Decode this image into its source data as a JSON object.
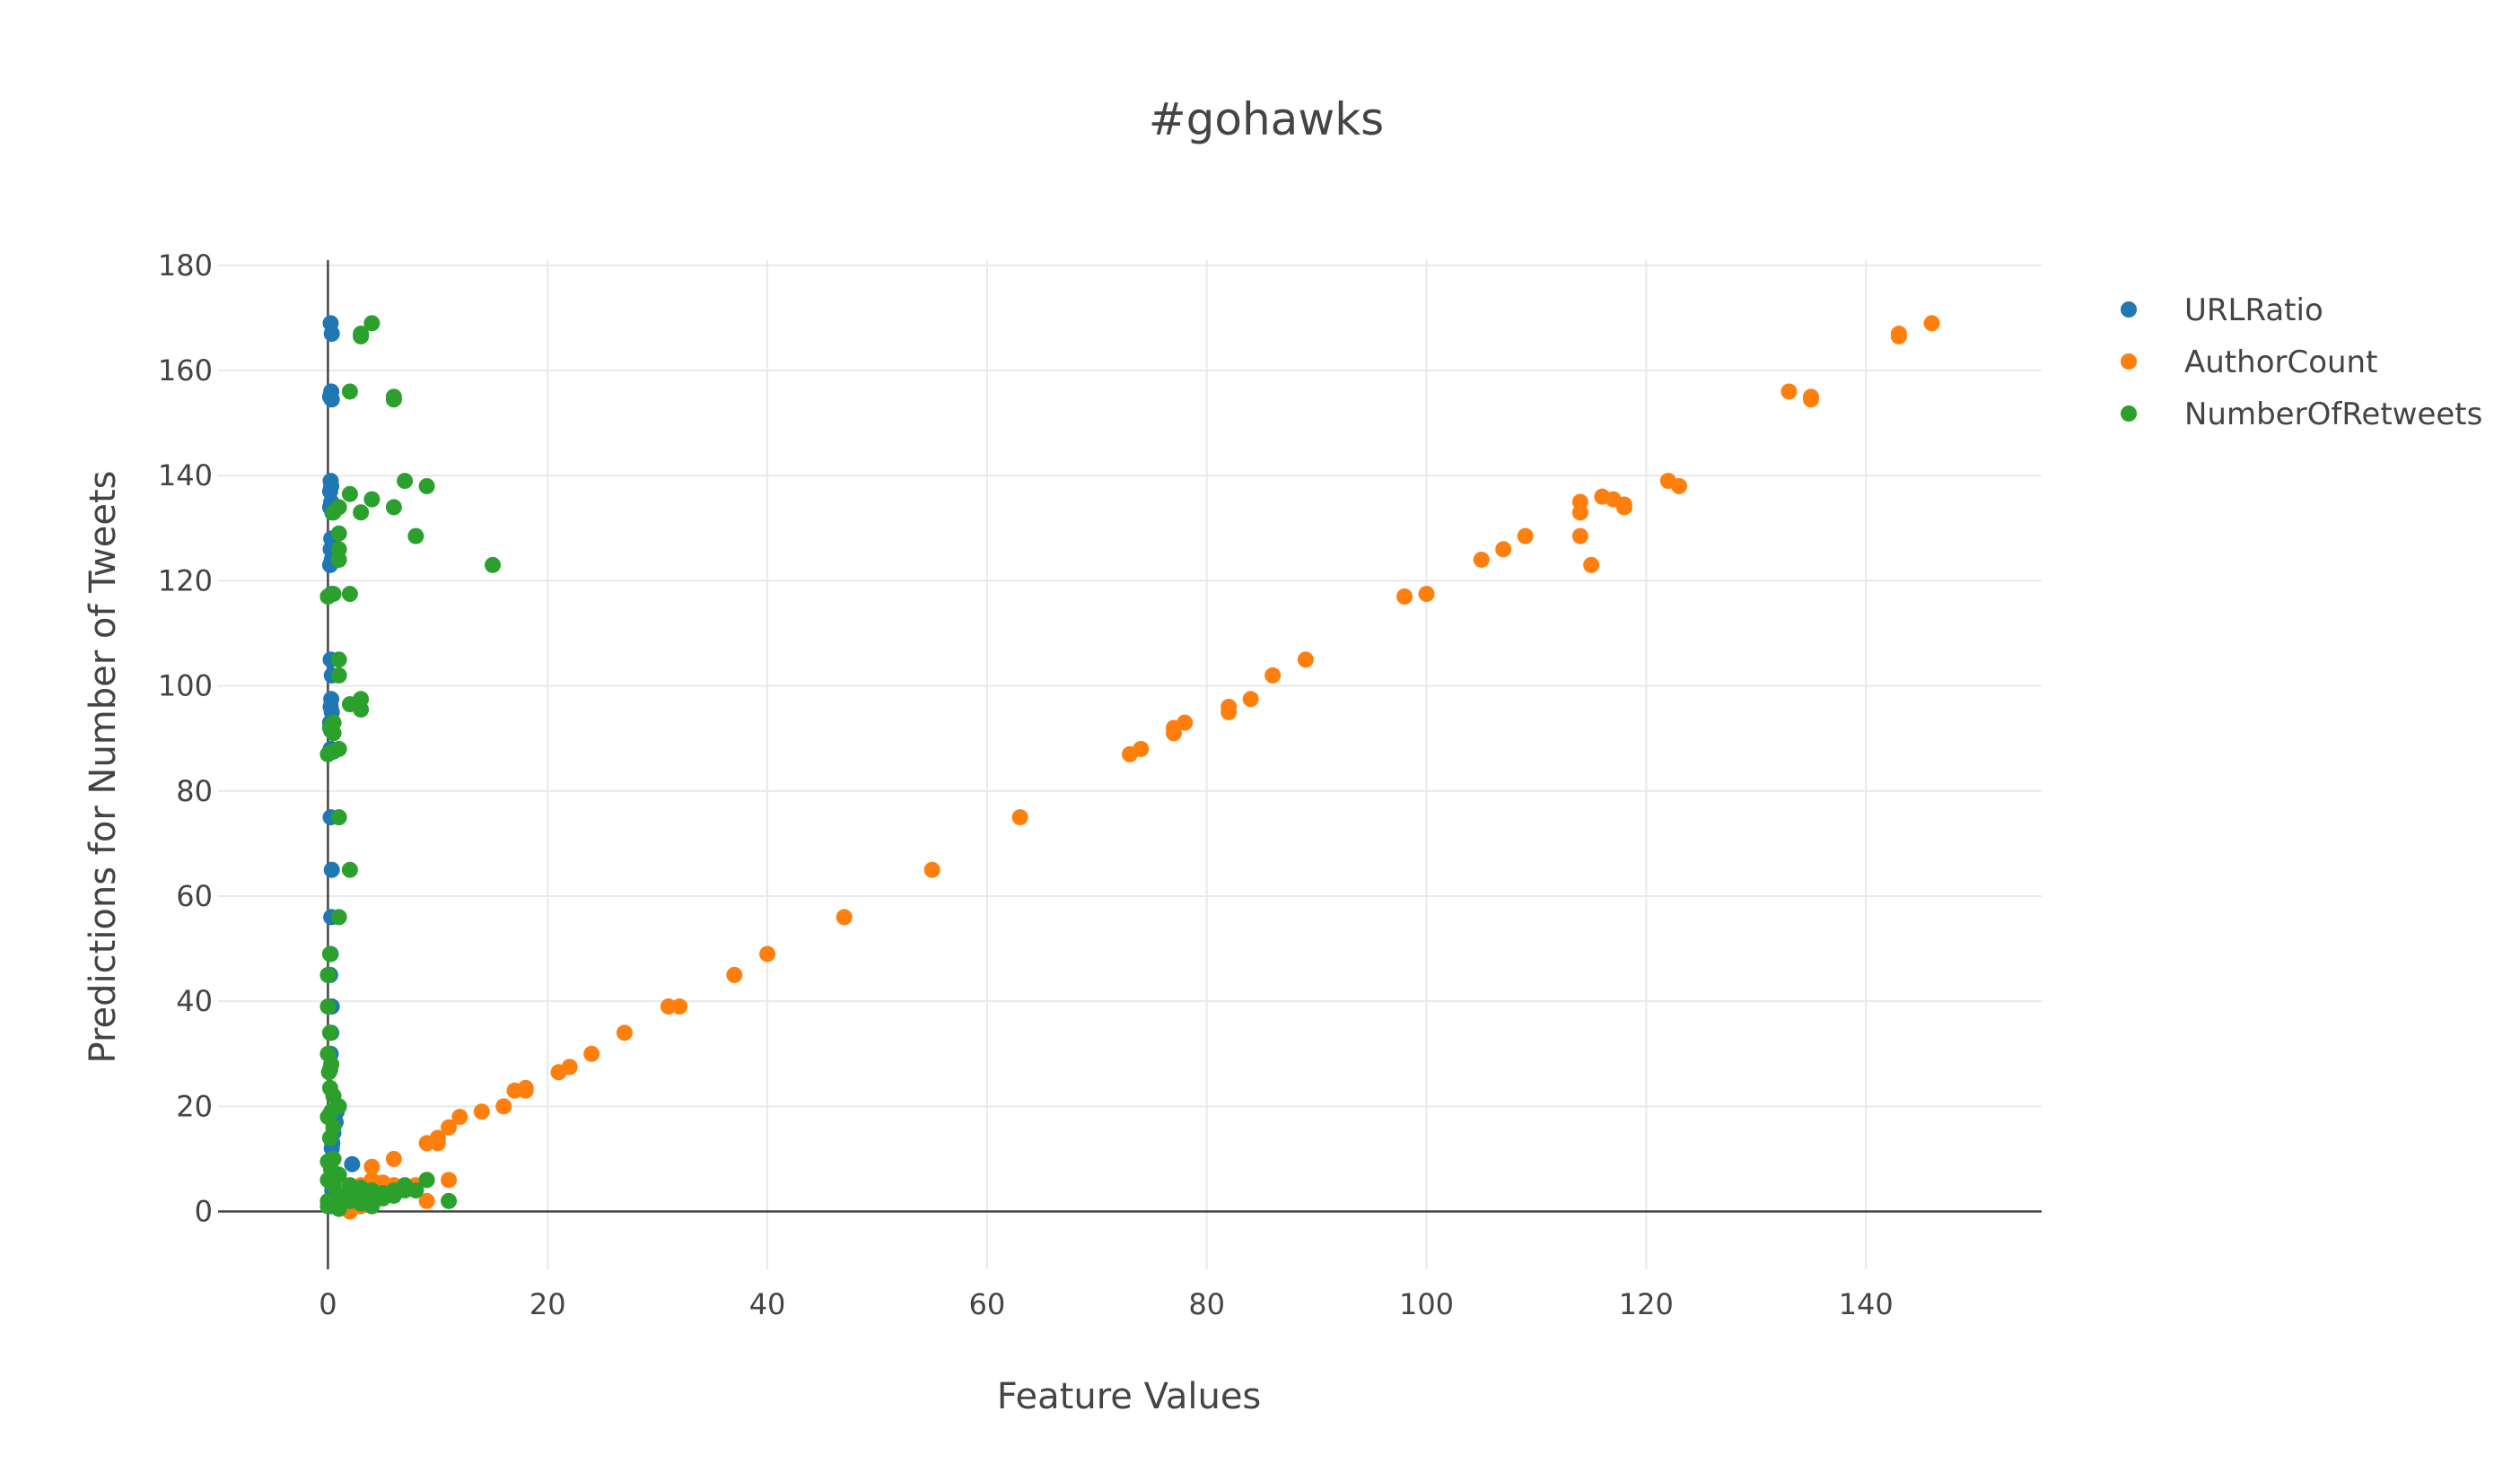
{
  "colors": {
    "URLRatio": "#1f77b4",
    "AuthorCount": "#ff7f0e",
    "NumberOfRetweets": "#2ca02c",
    "grid": "#e9e9e9",
    "zeroline": "#444444",
    "text": "#444444"
  },
  "chart_data": {
    "type": "scatter",
    "title": "#gohawks",
    "xlabel": "Feature Values",
    "ylabel": "Predictions for Number of Tweets",
    "xlim": [
      -10,
      156
    ],
    "ylim": [
      -11,
      181
    ],
    "xticks": [
      0,
      20,
      40,
      60,
      80,
      100,
      120,
      140
    ],
    "yticks": [
      0,
      20,
      40,
      60,
      80,
      100,
      120,
      140,
      160,
      180
    ],
    "grid": true,
    "legend_position": "top-right",
    "series": [
      {
        "name": "URLRatio",
        "points": [
          [
            0.25,
            169
          ],
          [
            0.35,
            167
          ],
          [
            0.3,
            156
          ],
          [
            0.2,
            155
          ],
          [
            0.35,
            154.5
          ],
          [
            0.25,
            139
          ],
          [
            0.3,
            138
          ],
          [
            0.2,
            137
          ],
          [
            0.3,
            135
          ],
          [
            0.2,
            134
          ],
          [
            0.4,
            133
          ],
          [
            0.3,
            128
          ],
          [
            0.25,
            126
          ],
          [
            0.35,
            124
          ],
          [
            0.2,
            123
          ],
          [
            0.3,
            117.5
          ],
          [
            0.25,
            105
          ],
          [
            0.35,
            102
          ],
          [
            0.3,
            97.5
          ],
          [
            0.25,
            96
          ],
          [
            0.35,
            95
          ],
          [
            0.2,
            93
          ],
          [
            0.3,
            91.5
          ],
          [
            0.25,
            88
          ],
          [
            0.25,
            75
          ],
          [
            0.35,
            65
          ],
          [
            0.3,
            56
          ],
          [
            0.25,
            49
          ],
          [
            0.2,
            45
          ],
          [
            0.35,
            39
          ],
          [
            0.3,
            34
          ],
          [
            0.25,
            30
          ],
          [
            0.2,
            27
          ],
          [
            0.9,
            20
          ],
          [
            0.8,
            19
          ],
          [
            0.7,
            17
          ],
          [
            0.5,
            15
          ],
          [
            0.4,
            13
          ],
          [
            0.35,
            12
          ],
          [
            2.2,
            9
          ],
          [
            0.3,
            8
          ],
          [
            0.5,
            6
          ],
          [
            0.4,
            4
          ],
          [
            0.3,
            2
          ],
          [
            0.2,
            1
          ]
        ]
      },
      {
        "name": "AuthorCount",
        "points": [
          [
            146,
            169
          ],
          [
            143,
            167
          ],
          [
            143,
            166.5
          ],
          [
            133,
            156
          ],
          [
            135,
            155
          ],
          [
            135,
            154.5
          ],
          [
            122,
            139
          ],
          [
            123,
            138
          ],
          [
            116,
            136
          ],
          [
            117,
            135.5
          ],
          [
            114,
            135
          ],
          [
            118,
            134.5
          ],
          [
            118,
            134
          ],
          [
            114,
            133
          ],
          [
            109,
            128.5
          ],
          [
            114,
            128.5
          ],
          [
            107,
            126
          ],
          [
            105,
            124
          ],
          [
            115,
            123
          ],
          [
            100,
            117.5
          ],
          [
            98,
            117
          ],
          [
            89,
            105
          ],
          [
            86,
            102
          ],
          [
            84,
            97.5
          ],
          [
            82,
            96
          ],
          [
            82,
            95
          ],
          [
            78,
            93
          ],
          [
            77,
            92
          ],
          [
            77,
            91
          ],
          [
            74,
            88
          ],
          [
            73,
            87
          ],
          [
            63,
            75
          ],
          [
            55,
            65
          ],
          [
            47,
            56
          ],
          [
            40,
            49
          ],
          [
            37,
            45
          ],
          [
            32,
            39
          ],
          [
            31,
            39
          ],
          [
            27,
            34
          ],
          [
            24,
            30
          ],
          [
            22,
            27.5
          ],
          [
            21,
            26.5
          ],
          [
            18,
            23.5
          ],
          [
            17,
            23
          ],
          [
            18,
            23
          ],
          [
            16,
            20
          ],
          [
            14,
            19
          ],
          [
            12,
            18
          ],
          [
            11,
            16
          ],
          [
            10,
            14
          ],
          [
            10,
            13
          ],
          [
            9,
            13
          ],
          [
            6,
            10
          ],
          [
            4,
            8.5
          ],
          [
            11,
            6
          ],
          [
            9,
            6
          ],
          [
            8,
            5
          ],
          [
            6,
            5
          ],
          [
            5,
            5.5
          ],
          [
            4,
            6
          ],
          [
            3,
            5
          ],
          [
            2,
            4
          ],
          [
            1,
            6
          ],
          [
            1,
            4
          ],
          [
            1,
            2
          ],
          [
            2,
            1.5
          ],
          [
            3,
            1
          ],
          [
            9,
            2
          ],
          [
            1,
            0.5
          ],
          [
            2,
            0
          ]
        ]
      },
      {
        "name": "NumberOfRetweets",
        "points": [
          [
            4,
            169
          ],
          [
            3,
            167
          ],
          [
            3,
            166.5
          ],
          [
            2,
            156
          ],
          [
            6,
            155
          ],
          [
            6,
            154.5
          ],
          [
            7,
            139
          ],
          [
            9,
            138
          ],
          [
            2,
            136.5
          ],
          [
            4,
            135.5
          ],
          [
            1,
            134
          ],
          [
            6,
            134
          ],
          [
            3,
            133
          ],
          [
            0.5,
            133
          ],
          [
            1,
            129
          ],
          [
            8,
            128.5
          ],
          [
            1,
            126
          ],
          [
            1,
            124
          ],
          [
            15,
            123
          ],
          [
            2,
            117.5
          ],
          [
            0.5,
            117.5
          ],
          [
            0,
            117
          ],
          [
            1,
            105
          ],
          [
            1,
            102
          ],
          [
            3,
            97.5
          ],
          [
            2,
            96.5
          ],
          [
            3,
            95.5
          ],
          [
            0.5,
            93
          ],
          [
            0.2,
            92
          ],
          [
            0.5,
            91
          ],
          [
            1,
            88
          ],
          [
            0.5,
            87.5
          ],
          [
            0,
            87
          ],
          [
            1,
            75
          ],
          [
            2,
            65
          ],
          [
            1,
            56
          ],
          [
            0.2,
            49
          ],
          [
            0,
            45
          ],
          [
            0,
            39
          ],
          [
            0.2,
            34
          ],
          [
            0,
            30
          ],
          [
            0.3,
            28
          ],
          [
            0.1,
            26.5
          ],
          [
            0.2,
            23.5
          ],
          [
            0.5,
            22
          ],
          [
            1,
            20
          ],
          [
            0.3,
            19
          ],
          [
            0,
            18
          ],
          [
            0.5,
            16
          ],
          [
            0.2,
            14
          ],
          [
            0.5,
            10
          ],
          [
            0,
            9.5
          ],
          [
            0.3,
            8
          ],
          [
            1,
            7
          ],
          [
            0,
            6
          ],
          [
            0.5,
            5
          ],
          [
            2,
            5
          ],
          [
            3,
            4.5
          ],
          [
            4,
            4
          ],
          [
            5,
            3.5
          ],
          [
            6,
            3
          ],
          [
            7,
            4
          ],
          [
            7,
            5
          ],
          [
            9,
            6
          ],
          [
            11,
            2
          ],
          [
            2,
            2
          ],
          [
            3,
            1.5
          ],
          [
            4,
            1
          ],
          [
            5,
            2.5
          ],
          [
            1,
            3
          ],
          [
            3,
            3
          ],
          [
            2,
            3.5
          ],
          [
            0,
            2
          ],
          [
            0,
            1
          ],
          [
            1,
            0.5
          ],
          [
            4,
            2
          ],
          [
            6,
            4
          ],
          [
            8,
            4
          ]
        ]
      }
    ]
  }
}
